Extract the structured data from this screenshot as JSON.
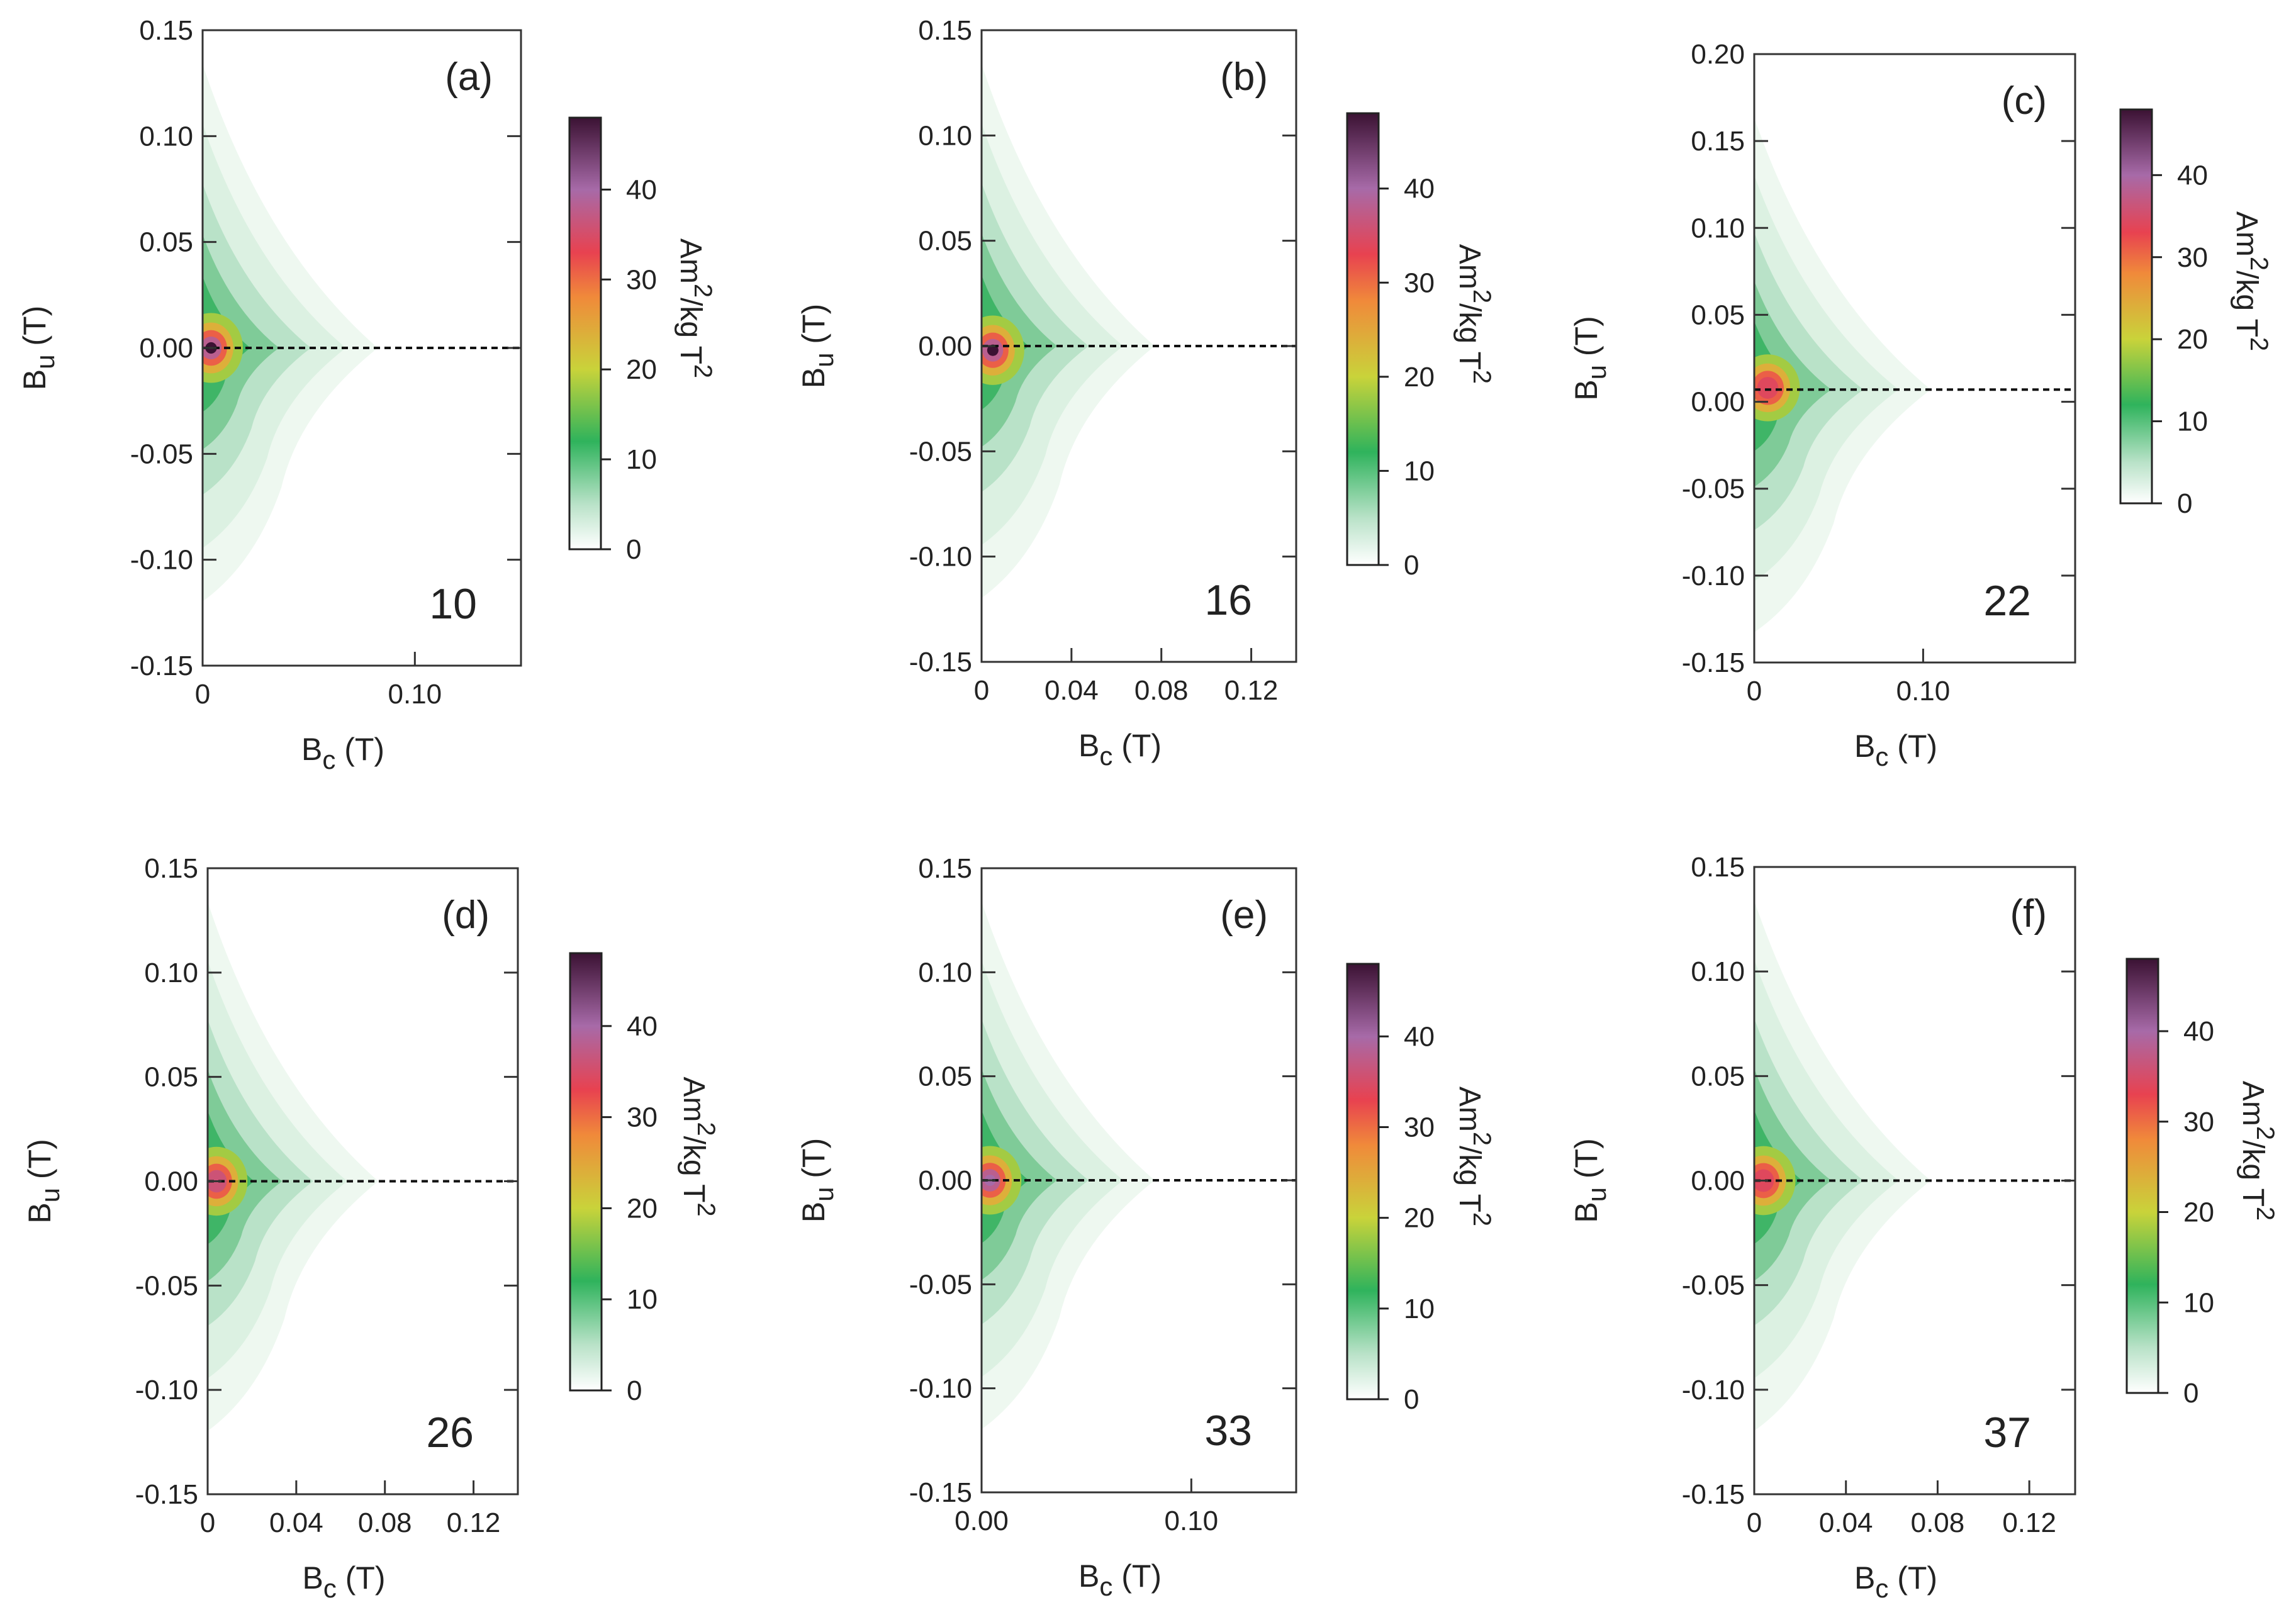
{
  "figure": {
    "description": "six FORC diagram panels"
  },
  "colorbar": {
    "stops": [
      {
        "v": 0,
        "c": "#ffffff"
      },
      {
        "v": 5,
        "c": "#b9e2c8"
      },
      {
        "v": 12,
        "c": "#2fb35c"
      },
      {
        "v": 20,
        "c": "#c9d33a"
      },
      {
        "v": 28,
        "c": "#f08a3a"
      },
      {
        "v": 33,
        "c": "#e84250"
      },
      {
        "v": 40,
        "c": "#a76aa8"
      },
      {
        "v": 48,
        "c": "#3b1233"
      }
    ],
    "max": 48,
    "ticks": [
      0,
      10,
      20,
      30,
      40
    ],
    "tick_labels": [
      "0",
      "10",
      "20",
      "30",
      "40"
    ],
    "unit_parts": [
      "Am",
      "2",
      "/kg T",
      "2"
    ]
  },
  "axis_text": {
    "y_main": "B",
    "y_sub": "u",
    "y_unit": "(T)",
    "x_main": "B",
    "x_sub": "c",
    "x_unit": "(T)"
  },
  "chart_data": [
    {
      "type": "heatmap",
      "panel": "(a)",
      "label": "10",
      "xlim": [
        0,
        0.15
      ],
      "ylim": [
        -0.15,
        0.15
      ],
      "xticks": [
        0,
        0.1
      ],
      "xtick_labels": [
        "0",
        "0.10"
      ],
      "yticks": [
        -0.15,
        -0.1,
        -0.05,
        0.0,
        0.05,
        0.1,
        0.15
      ],
      "ytick_labels": [
        "-0.15",
        "-0.10",
        "-0.05",
        "0.00",
        "0.05",
        "0.10",
        "0.15"
      ],
      "peak": {
        "bc": 0.004,
        "bu": 0.0,
        "value": 48
      },
      "dashed_line_bu": 0.0
    },
    {
      "type": "heatmap",
      "panel": "(b)",
      "label": "16",
      "xlim": [
        0,
        0.14
      ],
      "ylim": [
        -0.15,
        0.15
      ],
      "xticks": [
        0,
        0.04,
        0.08,
        0.12
      ],
      "xtick_labels": [
        "0",
        "0.04",
        "0.08",
        "0.12"
      ],
      "yticks": [
        -0.15,
        -0.1,
        -0.05,
        0.0,
        0.05,
        0.1,
        0.15
      ],
      "ytick_labels": [
        "-0.15",
        "-0.10",
        "-0.05",
        "0.00",
        "0.05",
        "0.10",
        "0.15"
      ],
      "peak": {
        "bc": 0.005,
        "bu": -0.002,
        "value": 48
      },
      "dashed_line_bu": 0.0
    },
    {
      "type": "heatmap",
      "panel": "(c)",
      "label": "22",
      "xlim": [
        0,
        0.19
      ],
      "ylim": [
        -0.15,
        0.2
      ],
      "xticks": [
        0,
        0.1
      ],
      "xtick_labels": [
        "0",
        "0.10"
      ],
      "yticks": [
        -0.15,
        -0.1,
        -0.05,
        0.0,
        0.05,
        0.1,
        0.15,
        0.2
      ],
      "ytick_labels": [
        "-0.15",
        "-0.10",
        "-0.05",
        "0.00",
        "0.05",
        "0.10",
        "0.15",
        "0.20"
      ],
      "peak": {
        "bc": 0.008,
        "bu": 0.008,
        "value": 34
      },
      "dashed_line_bu": 0.007
    },
    {
      "type": "heatmap",
      "panel": "(d)",
      "label": "26",
      "xlim": [
        0,
        0.14
      ],
      "ylim": [
        -0.15,
        0.15
      ],
      "xticks": [
        0,
        0.04,
        0.08,
        0.12
      ],
      "xtick_labels": [
        "0",
        "0.04",
        "0.08",
        "0.12"
      ],
      "yticks": [
        -0.15,
        -0.1,
        -0.05,
        0.0,
        0.05,
        0.1,
        0.15
      ],
      "ytick_labels": [
        "-0.15",
        "-0.10",
        "-0.05",
        "0.00",
        "0.05",
        "0.10",
        "0.15"
      ],
      "peak": {
        "bc": 0.004,
        "bu": 0.0,
        "value": 36
      },
      "dashed_line_bu": 0.0
    },
    {
      "type": "heatmap",
      "panel": "(e)",
      "label": "33",
      "xlim": [
        0,
        0.15
      ],
      "ylim": [
        -0.15,
        0.15
      ],
      "xticks": [
        0,
        0.1
      ],
      "xtick_labels": [
        "0.00",
        "0.10"
      ],
      "yticks": [
        -0.15,
        -0.1,
        -0.05,
        0.0,
        0.05,
        0.1,
        0.15
      ],
      "ytick_labels": [
        "-0.15",
        "-0.10",
        "-0.05",
        "0.00",
        "0.05",
        "0.10",
        "0.15"
      ],
      "peak": {
        "bc": 0.004,
        "bu": 0.0,
        "value": 40
      },
      "dashed_line_bu": 0.0
    },
    {
      "type": "heatmap",
      "panel": "(f)",
      "label": "37",
      "xlim": [
        0,
        0.14
      ],
      "ylim": [
        -0.15,
        0.15
      ],
      "xticks": [
        0,
        0.04,
        0.08,
        0.12
      ],
      "xtick_labels": [
        "0",
        "0.04",
        "0.08",
        "0.12"
      ],
      "yticks": [
        -0.15,
        -0.1,
        -0.05,
        0.0,
        0.05,
        0.1,
        0.15
      ],
      "ytick_labels": [
        "-0.15",
        "-0.10",
        "-0.05",
        "0.00",
        "0.05",
        "0.10",
        "0.15"
      ],
      "peak": {
        "bc": 0.004,
        "bu": 0.0,
        "value": 34
      },
      "dashed_line_bu": 0.0
    }
  ]
}
